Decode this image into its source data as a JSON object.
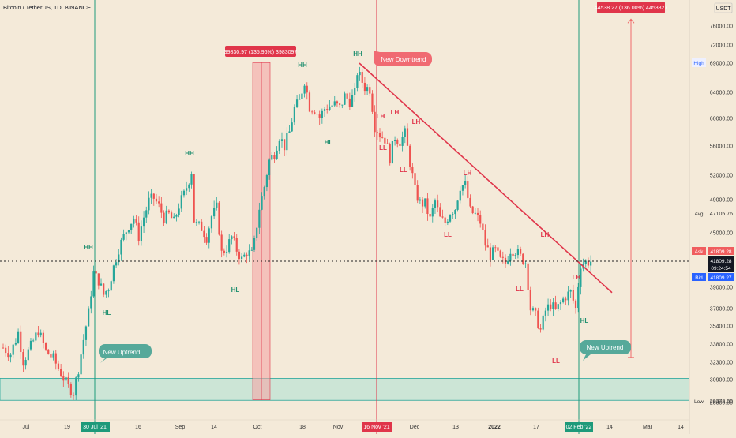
{
  "header": {
    "title": "Bitcoin / TetherUS, 1D, BINANCE",
    "currency": "USDT",
    "currency_prefix": "8"
  },
  "colors": {
    "background": "#f4ead9",
    "up": "#26a69a",
    "down": "#ef5350",
    "green_line": "#1e9a7a",
    "red_line": "#e0354a",
    "zone_fill": "#bfe3d4",
    "trendline": "#e0354a",
    "price_line": "#222222",
    "ask": "#f05d5e",
    "bid": "#2962ff",
    "label_hh": "#1f8f6f",
    "label_ll": "#e0354a"
  },
  "chart_data": {
    "type": "candlestick",
    "x_ticks": [
      "Jul",
      "19",
      "30 Jul '21",
      "16",
      "Sep",
      "14",
      "Oct",
      "18",
      "Nov",
      "16 Nov '21",
      "Dec",
      "13",
      "2022",
      "17",
      "02 Feb '22",
      "14",
      "Mar",
      "14"
    ],
    "y_ticks": [
      76000,
      72000,
      69000,
      64000,
      60000,
      56000,
      52000,
      49000,
      45000,
      39000,
      37000,
      35400,
      33800,
      32300,
      30900,
      28300
    ],
    "y_tick_labels": [
      "76000.00",
      "72000.00",
      "69000.00",
      "64000.00",
      "60000.00",
      "56000.00",
      "52000.00",
      "49000.00",
      "45000.00",
      "39000.00",
      "37000.00",
      "35400.00",
      "33800.00",
      "32300.00",
      "30900.00",
      "28300.00"
    ],
    "ylim": [
      27700,
      84000
    ],
    "price_markers": {
      "high": {
        "label": "High",
        "value": 69000
      },
      "avg": {
        "label": "Avg",
        "value": 47105.76,
        "text": "47105.76"
      },
      "ask": {
        "label": "Ask",
        "value": 41809.28,
        "text": "41809.28"
      },
      "last": {
        "value": 41809.28,
        "text": "41809.28",
        "countdown": "09:24:54"
      },
      "bid": {
        "label": "Bid",
        "value": 41809.27,
        "text": "41809.27"
      },
      "low": {
        "label": "Low",
        "value": 29278,
        "text": "29278.00"
      }
    },
    "vertical_markers": [
      {
        "date": "30 Jul '21",
        "color": "green"
      },
      {
        "date": "16 Nov '21",
        "color": "red"
      },
      {
        "date": "02 Feb '22",
        "color": "green"
      }
    ],
    "support_zone": {
      "from": 29200,
      "to": 31000
    },
    "trendline": {
      "from": {
        "date": "10 Nov '21",
        "price": 69000
      },
      "to": {
        "date": "Feb '22",
        "price": 38500
      }
    },
    "measurements": [
      {
        "text": "39830.97 (135.96%) 3983097",
        "from": 29300,
        "to": 69100
      },
      {
        "text": "44538.27 (136.00%) 4453827",
        "from": 32700,
        "to": 77200
      }
    ],
    "callouts": [
      {
        "text": "New Downtrend"
      },
      {
        "text": "New Uptrend"
      },
      {
        "text": "New Uptrend"
      }
    ],
    "swing_labels": [
      {
        "text": "HH"
      },
      {
        "text": "HL"
      },
      {
        "text": "HH"
      },
      {
        "text": "HL"
      },
      {
        "text": "HH"
      },
      {
        "text": "HL"
      },
      {
        "text": "HH"
      },
      {
        "text": "LH"
      },
      {
        "text": "LL"
      },
      {
        "text": "LH"
      },
      {
        "text": "LL"
      },
      {
        "text": "LH"
      },
      {
        "text": "LL"
      },
      {
        "text": "LH"
      },
      {
        "text": "LL"
      },
      {
        "text": "LH"
      },
      {
        "text": "LL"
      },
      {
        "text": "LH"
      },
      {
        "text": "HL"
      }
    ],
    "price_path": [
      [
        0,
        33500
      ],
      [
        3,
        33000
      ],
      [
        6,
        34800
      ],
      [
        8,
        32400
      ],
      [
        11,
        33600
      ],
      [
        14,
        35000
      ],
      [
        17,
        33200
      ],
      [
        20,
        32600
      ],
      [
        23,
        31400
      ],
      [
        26,
        30300
      ],
      [
        28,
        29900
      ],
      [
        30,
        31800
      ],
      [
        32,
        34200
      ],
      [
        34,
        36600
      ],
      [
        36,
        40500
      ],
      [
        38,
        39700
      ],
      [
        40,
        38300
      ],
      [
        42,
        39000
      ],
      [
        44,
        41200
      ],
      [
        46,
        43200
      ],
      [
        48,
        44600
      ],
      [
        50,
        45900
      ],
      [
        52,
        46800
      ],
      [
        54,
        44600
      ],
      [
        56,
        46900
      ],
      [
        58,
        48800
      ],
      [
        60,
        49200
      ],
      [
        62,
        48200
      ],
      [
        64,
        46800
      ],
      [
        66,
        47200
      ],
      [
        68,
        46300
      ],
      [
        70,
        48300
      ],
      [
        72,
        49600
      ],
      [
        74,
        51500
      ],
      [
        75,
        52500
      ],
      [
        76,
        46500
      ],
      [
        77,
        46000
      ],
      [
        79,
        45600
      ],
      [
        81,
        44500
      ],
      [
        83,
        47000
      ],
      [
        85,
        48000
      ],
      [
        87,
        42700
      ],
      [
        89,
        43300
      ],
      [
        91,
        44500
      ],
      [
        93,
        43100
      ],
      [
        95,
        42000
      ],
      [
        97,
        42800
      ],
      [
        99,
        42600
      ],
      [
        100,
        43900
      ],
      [
        102,
        48000
      ],
      [
        104,
        50600
      ],
      [
        106,
        54000
      ],
      [
        108,
        55000
      ],
      [
        110,
        57400
      ],
      [
        112,
        56000
      ],
      [
        114,
        58000
      ],
      [
        116,
        61500
      ],
      [
        118,
        62600
      ],
      [
        120,
        66000
      ],
      [
        122,
        61800
      ],
      [
        124,
        61400
      ],
      [
        126,
        60100
      ],
      [
        128,
        61500
      ],
      [
        130,
        61900
      ],
      [
        132,
        62100
      ],
      [
        134,
        61600
      ],
      [
        136,
        63400
      ],
      [
        138,
        62700
      ],
      [
        140,
        63800
      ],
      [
        141,
        67500
      ],
      [
        142,
        66700
      ],
      [
        144,
        64900
      ],
      [
        146,
        64600
      ],
      [
        148,
        58900
      ],
      [
        150,
        57700
      ],
      [
        152,
        57000
      ],
      [
        154,
        54400
      ],
      [
        156,
        57300
      ],
      [
        158,
        56700
      ],
      [
        160,
        57800
      ],
      [
        162,
        53700
      ],
      [
        164,
        50100
      ],
      [
        166,
        48600
      ],
      [
        168,
        48500
      ],
      [
        170,
        46600
      ],
      [
        172,
        48800
      ],
      [
        174,
        46700
      ],
      [
        176,
        46200
      ],
      [
        178,
        47500
      ],
      [
        180,
        48000
      ],
      [
        182,
        50700
      ],
      [
        184,
        50800
      ],
      [
        186,
        47600
      ],
      [
        188,
        47200
      ],
      [
        190,
        46300
      ],
      [
        192,
        43700
      ],
      [
        194,
        42500
      ],
      [
        196,
        43000
      ],
      [
        198,
        41900
      ],
      [
        200,
        41600
      ],
      [
        202,
        43100
      ],
      [
        204,
        43000
      ],
      [
        206,
        42300
      ],
      [
        208,
        41700
      ],
      [
        210,
        37000
      ],
      [
        212,
        36300
      ],
      [
        214,
        35000
      ],
      [
        216,
        36800
      ],
      [
        218,
        37400
      ],
      [
        220,
        36800
      ],
      [
        222,
        37500
      ],
      [
        224,
        38200
      ],
      [
        226,
        38500
      ],
      [
        228,
        37000
      ],
      [
        230,
        41500
      ],
      [
        232,
        41700
      ],
      [
        234,
        41800
      ]
    ]
  }
}
